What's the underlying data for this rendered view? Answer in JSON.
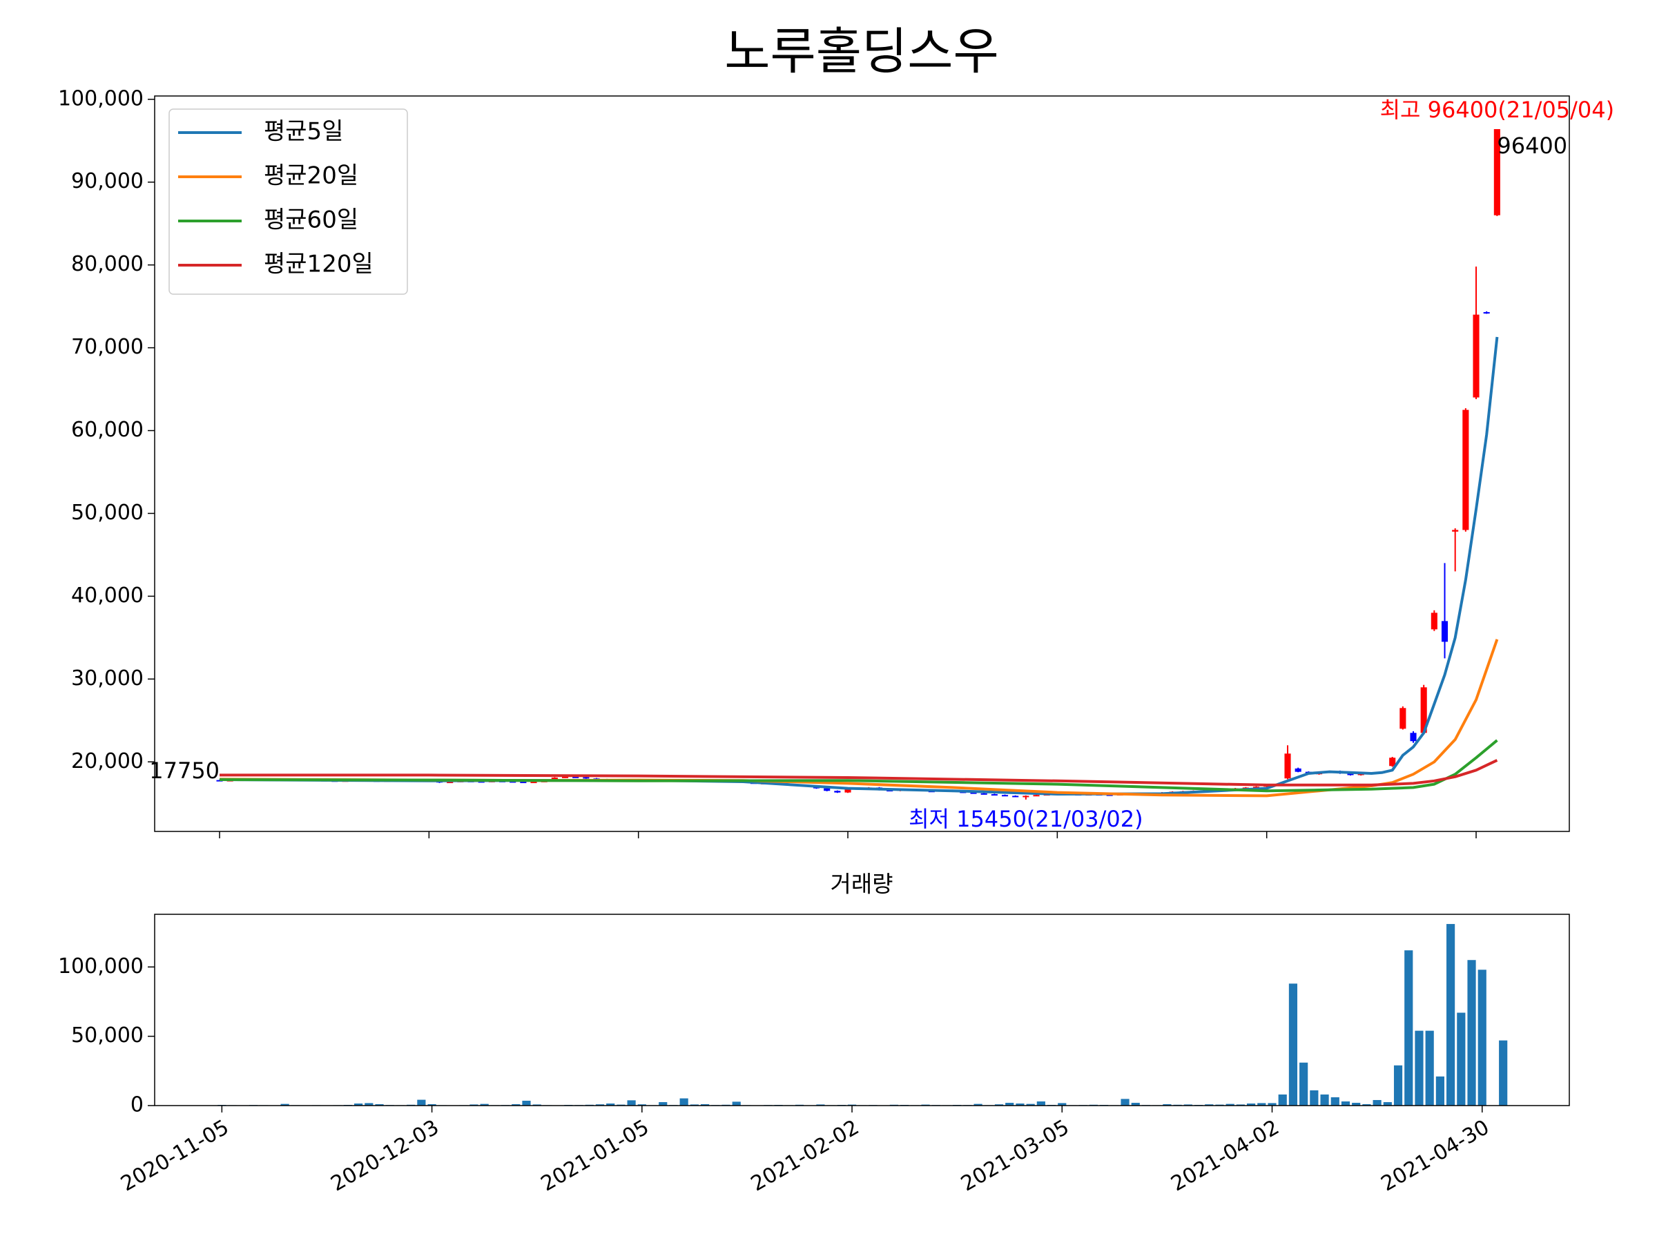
{
  "chart_data": [
    {
      "type": "candlestick",
      "title": "노루홀딩스우",
      "xlim": [
        -6.2,
        128.9
      ],
      "xticks": [
        0,
        20,
        40,
        60,
        80,
        100,
        120
      ],
      "ylim": [
        11600,
        100400
      ],
      "yticks": [
        {
          "value": 20000,
          "label": "20,000"
        },
        {
          "value": 30000,
          "label": "30,000"
        },
        {
          "value": 40000,
          "label": "40,000"
        },
        {
          "value": 50000,
          "label": "50,000"
        },
        {
          "value": 60000,
          "label": "60,000"
        },
        {
          "value": 70000,
          "label": "70,000"
        },
        {
          "value": 80000,
          "label": "80,000"
        },
        {
          "value": 90000,
          "label": "90,000"
        },
        {
          "value": 100000,
          "label": "100,000"
        }
      ],
      "up_color": "#ff0000",
      "down_color": "#0000ff",
      "legend": "upper left",
      "open": [
        17800,
        17750,
        17800,
        17850,
        17900,
        17850,
        17800,
        17850,
        17900,
        17850,
        17800,
        17750,
        17700,
        17750,
        17800,
        17750,
        17700,
        17750,
        17800,
        17850,
        17800,
        17750,
        17500,
        17600,
        17700,
        17650,
        17600,
        17700,
        17650,
        17600,
        17550,
        17600,
        17700,
        18100,
        18200,
        18150,
        18000,
        17900,
        17850,
        17800,
        17850,
        17800,
        17750,
        17700,
        17750,
        17800,
        17700,
        17650,
        17700,
        17750,
        17700,
        17500,
        17400,
        17450,
        17350,
        17300,
        17200,
        17100,
        16800,
        16500,
        16300,
        16700,
        16800,
        16900,
        16600,
        16500,
        16700,
        16650,
        16500,
        16450,
        16600,
        16400,
        16300,
        16200,
        16100,
        16000,
        15900,
        15800,
        15900,
        16000,
        16100,
        16200,
        16100,
        16000,
        16100,
        16050,
        16000,
        16100,
        16200,
        16150,
        16100,
        16300,
        16400,
        16450,
        16500,
        16550,
        16600,
        16700,
        16800,
        16900,
        17000,
        17200,
        18000,
        19200,
        18800,
        18500,
        18700,
        18900,
        18600,
        18400,
        18600,
        18700,
        19500,
        24000,
        23500,
        23500,
        36000,
        37000,
        47800,
        48000,
        64000,
        74300,
        86000
      ],
      "high": [
        17850,
        17850,
        17900,
        17950,
        17950,
        17900,
        17900,
        17950,
        17950,
        17900,
        17850,
        17800,
        17800,
        17850,
        17850,
        17800,
        17800,
        17850,
        17900,
        17900,
        17850,
        17800,
        17650,
        17750,
        17750,
        17700,
        17750,
        17750,
        17700,
        17650,
        17650,
        17750,
        18150,
        18250,
        18250,
        18200,
        18050,
        17950,
        17900,
        17900,
        17900,
        17850,
        17800,
        17800,
        17850,
        17850,
        17750,
        17750,
        17800,
        17800,
        17750,
        17550,
        17500,
        17500,
        17400,
        17350,
        17250,
        17150,
        16850,
        16550,
        16750,
        16850,
        16950,
        16950,
        16650,
        16750,
        16750,
        16700,
        16550,
        16650,
        16650,
        16450,
        16350,
        16250,
        16150,
        16050,
        15950,
        15950,
        16050,
        16150,
        16250,
        16250,
        16150,
        16150,
        16150,
        16100,
        16150,
        16250,
        16250,
        16200,
        16350,
        16450,
        16500,
        16550,
        16600,
        16650,
        16750,
        16850,
        16950,
        17050,
        17250,
        17350,
        22000,
        19300,
        18850,
        18750,
        18950,
        18950,
        18650,
        18650,
        18750,
        18850,
        20600,
        26700,
        23700,
        29300,
        38300,
        44000,
        48200,
        62700,
        79800,
        74400,
        96400
      ],
      "low": [
        17700,
        17700,
        17750,
        17800,
        17800,
        17750,
        17750,
        17800,
        17800,
        17750,
        17700,
        17650,
        17650,
        17700,
        17700,
        17650,
        17650,
        17700,
        17750,
        17750,
        17700,
        17450,
        17450,
        17550,
        17600,
        17550,
        17550,
        17600,
        17550,
        17500,
        17500,
        17550,
        17650,
        18050,
        18100,
        17950,
        17850,
        17800,
        17750,
        17750,
        17750,
        17700,
        17650,
        17650,
        17700,
        17650,
        17600,
        17600,
        17650,
        17650,
        17450,
        17350,
        17350,
        17300,
        17250,
        17150,
        17050,
        16750,
        16450,
        16250,
        16250,
        16650,
        16750,
        16550,
        16450,
        16450,
        16600,
        16450,
        16400,
        16400,
        16350,
        16250,
        16150,
        16050,
        15950,
        15850,
        15750,
        15450,
        15850,
        15950,
        16050,
        16050,
        15950,
        15950,
        16000,
        15950,
        15950,
        16050,
        16100,
        16050,
        16050,
        16250,
        16350,
        16400,
        16450,
        16500,
        16550,
        16650,
        16750,
        16850,
        16950,
        17150,
        17900,
        18750,
        18450,
        18450,
        18650,
        18550,
        18350,
        18350,
        18550,
        18650,
        19400,
        23900,
        22300,
        23300,
        35800,
        32500,
        43000,
        47800,
        63800,
        74100,
        85900
      ],
      "close": [
        17750,
        17800,
        17850,
        17900,
        17850,
        17800,
        17850,
        17900,
        17850,
        17800,
        17750,
        17700,
        17750,
        17800,
        17750,
        17700,
        17750,
        17800,
        17850,
        17800,
        17750,
        17500,
        17600,
        17700,
        17650,
        17600,
        17700,
        17650,
        17600,
        17550,
        17600,
        17700,
        18100,
        18200,
        18150,
        18000,
        17900,
        17850,
        17800,
        17850,
        17800,
        17750,
        17700,
        17750,
        17800,
        17700,
        17650,
        17700,
        17750,
        17700,
        17500,
        17400,
        17450,
        17350,
        17300,
        17200,
        17100,
        16800,
        16500,
        16300,
        16700,
        16800,
        16900,
        16600,
        16500,
        16700,
        16650,
        16500,
        16450,
        16600,
        16400,
        16300,
        16200,
        16100,
        16000,
        15900,
        15800,
        15900,
        16000,
        16100,
        16200,
        16100,
        16000,
        16100,
        16050,
        16000,
        16100,
        16200,
        16150,
        16100,
        16300,
        16400,
        16450,
        16500,
        16550,
        16600,
        16700,
        16800,
        16900,
        17000,
        17200,
        17300,
        21000,
        18800,
        18500,
        18700,
        18900,
        18600,
        18400,
        18600,
        18700,
        18800,
        20500,
        26500,
        22500,
        29000,
        38000,
        34500,
        48000,
        62500,
        74000,
        74200,
        96400
      ],
      "series": [
        {
          "name": "평균5일",
          "color": "#1f77b4",
          "x": [
            0,
            10,
            20,
            30,
            40,
            50,
            60,
            70,
            80,
            90,
            100,
            102,
            104,
            106,
            108,
            110,
            111,
            112,
            113,
            114,
            115,
            116,
            117,
            118,
            119,
            120,
            121,
            122
          ],
          "values": [
            17850,
            17780,
            17700,
            17750,
            17780,
            17600,
            16800,
            16500,
            16100,
            16150,
            16800,
            17700,
            18600,
            18800,
            18700,
            18600,
            18700,
            19000,
            20800,
            21800,
            23500,
            27000,
            30500,
            35000,
            42000,
            50500,
            59500,
            71300
          ]
        },
        {
          "name": "평균20일",
          "color": "#ff7f0e",
          "x": [
            0,
            10,
            20,
            30,
            40,
            50,
            60,
            70,
            80,
            90,
            100,
            105,
            110,
            112,
            114,
            116,
            118,
            120,
            122
          ],
          "values": [
            17900,
            17850,
            17800,
            17750,
            17800,
            17750,
            17400,
            16900,
            16300,
            16000,
            15900,
            16500,
            17100,
            17500,
            18500,
            20000,
            22700,
            27500,
            34800
          ]
        },
        {
          "name": "평균60일",
          "color": "#2ca02c",
          "x": [
            0,
            20,
            40,
            60,
            80,
            100,
            105,
            110,
            114,
            116,
            118,
            120,
            122
          ],
          "values": [
            17850,
            17800,
            17700,
            17750,
            17300,
            16500,
            16600,
            16700,
            16900,
            17300,
            18500,
            20500,
            22600
          ]
        },
        {
          "name": "평균120일",
          "color": "#d62728",
          "x": [
            0,
            20,
            40,
            60,
            80,
            100,
            110,
            114,
            116,
            118,
            120,
            122
          ],
          "values": [
            18400,
            18400,
            18300,
            18100,
            17700,
            17200,
            17200,
            17400,
            17700,
            18200,
            19000,
            20200
          ]
        }
      ],
      "annotations": [
        {
          "text": "최고 96400(21/05/04)",
          "color": "#ff0000"
        },
        {
          "text": "96400",
          "color": "#000000"
        },
        {
          "text": "17750",
          "color": "#000000"
        },
        {
          "text": "최저 15450(21/03/02)",
          "color": "#0000ff"
        }
      ]
    },
    {
      "type": "bar",
      "title": "거래량",
      "color": "#1f77b4",
      "xlim": [
        -6.4,
        128.3
      ],
      "ylim": [
        0,
        138000
      ],
      "yticks": [
        0,
        {
          "value": 50000,
          "label": "50,000"
        },
        {
          "value": 100000,
          "label": "100,000"
        }
      ],
      "categories": [
        "2020-11-05",
        null,
        null,
        null,
        null,
        null,
        null,
        null,
        null,
        null,
        null,
        null,
        null,
        null,
        null,
        null,
        null,
        null,
        null,
        null,
        "2020-12-03",
        null,
        null,
        null,
        null,
        null,
        null,
        null,
        null,
        null,
        null,
        null,
        null,
        null,
        null,
        null,
        null,
        null,
        null,
        null,
        "2021-01-05",
        null,
        null,
        null,
        null,
        null,
        null,
        null,
        null,
        null,
        null,
        null,
        null,
        null,
        null,
        null,
        null,
        null,
        null,
        null,
        "2021-02-02",
        null,
        null,
        null,
        null,
        null,
        null,
        null,
        null,
        null,
        null,
        null,
        null,
        null,
        null,
        null,
        null,
        null,
        null,
        null,
        "2021-03-05",
        null,
        null,
        null,
        null,
        null,
        null,
        null,
        null,
        null,
        null,
        null,
        null,
        null,
        null,
        null,
        null,
        null,
        null,
        null,
        "2021-04-02",
        null,
        null,
        null,
        null,
        null,
        null,
        null,
        null,
        null,
        null,
        null,
        null,
        null,
        null,
        null,
        null,
        null,
        null,
        null,
        "2021-04-30",
        null,
        null
      ],
      "values": [
        500,
        300,
        200,
        400,
        300,
        200,
        1200,
        300,
        200,
        300,
        200,
        300,
        500,
        1500,
        1800,
        1000,
        400,
        300,
        600,
        4200,
        1000,
        300,
        200,
        300,
        800,
        1200,
        300,
        400,
        1000,
        3500,
        800,
        300,
        200,
        500,
        400,
        600,
        900,
        1500,
        700,
        3800,
        900,
        300,
        2500,
        400,
        5200,
        800,
        1000,
        400,
        600,
        2800,
        300,
        200,
        400,
        500,
        300,
        600,
        200,
        800,
        300,
        500,
        700,
        300,
        400,
        200,
        600,
        500,
        300,
        700,
        400,
        300,
        500,
        400,
        1200,
        300,
        900,
        2000,
        1500,
        1200,
        3000,
        500,
        1800,
        300,
        400,
        600,
        500,
        300,
        4800,
        2000,
        400,
        300,
        1000,
        600,
        800,
        500,
        900,
        700,
        1200,
        800,
        1500,
        1800,
        1800,
        8000,
        88000,
        31000,
        11000,
        8000,
        6000,
        3000,
        2000,
        1000,
        4000,
        2500,
        29000,
        112000,
        54000,
        54000,
        21000,
        131000,
        67000,
        105000,
        98000,
        0,
        47000
      ]
    }
  ]
}
